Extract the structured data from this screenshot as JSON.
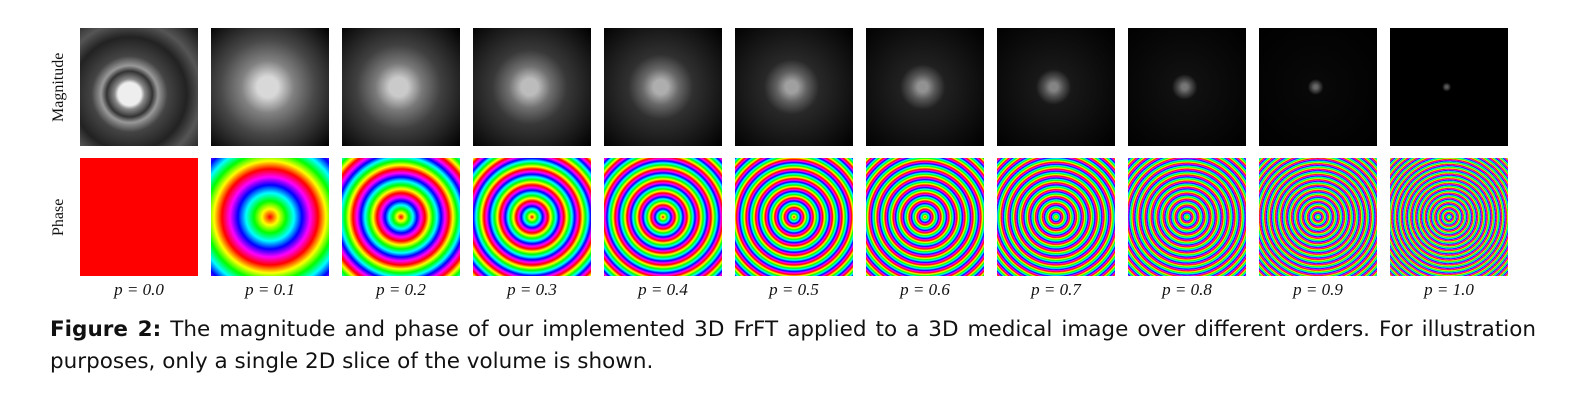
{
  "figure": {
    "row_labels": [
      "Magnitude",
      "Phase"
    ],
    "column_labels": [
      "p = 0.0",
      "p = 0.1",
      "p = 0.2",
      "p = 0.3",
      "p = 0.4",
      "p = 0.5",
      "p = 0.6",
      "p = 0.7",
      "p = 0.8",
      "p = 0.9",
      "p = 1.0"
    ]
  },
  "caption": {
    "label": "Figure 2:",
    "text": "The magnitude and phase of our implemented 3D FrFT applied to a 3D medical image over different orders. For illustration purposes, only a single 2D slice of the volume is shown."
  }
}
